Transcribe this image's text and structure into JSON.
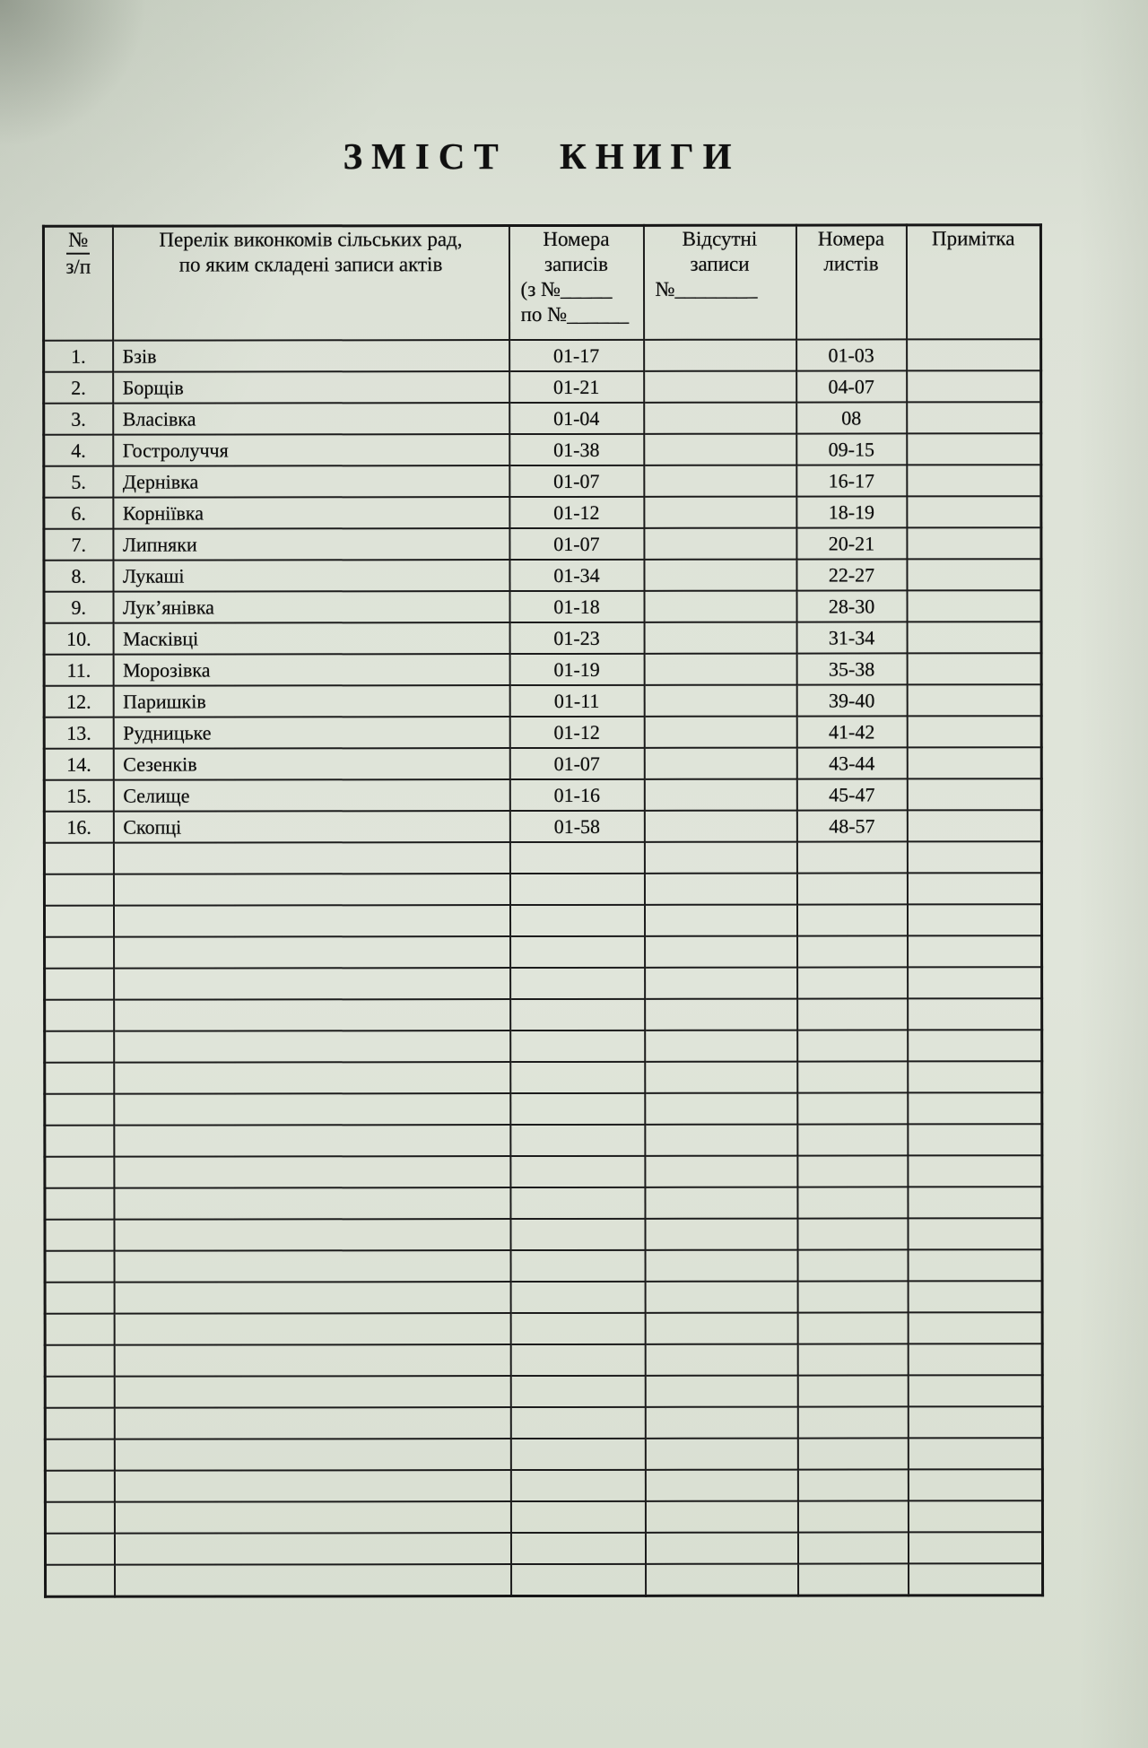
{
  "page": {
    "title": "ЗМІСТ КНИГИ"
  },
  "table": {
    "header": {
      "col1": [
        "№",
        "з/п"
      ],
      "col2": [
        "Перелік виконкомів сільських рад,",
        "по яким складені записи актів"
      ],
      "col3": [
        "Номера",
        "записів",
        "(з №_____",
        "по №______"
      ],
      "col4": [
        "Відсутні",
        "записи",
        "№________"
      ],
      "col5": [
        "Номера",
        "листів"
      ],
      "col6": [
        "Примітка"
      ]
    },
    "rows": [
      {
        "num": "1.",
        "name": "Бзів",
        "records": "01-17",
        "missing": "",
        "sheets": "01-03",
        "note": ""
      },
      {
        "num": "2.",
        "name": "Борщів",
        "records": "01-21",
        "missing": "",
        "sheets": "04-07",
        "note": ""
      },
      {
        "num": "3.",
        "name": "Власівка",
        "records": "01-04",
        "missing": "",
        "sheets": "08",
        "note": ""
      },
      {
        "num": "4.",
        "name": "Гостролуччя",
        "records": "01-38",
        "missing": "",
        "sheets": "09-15",
        "note": ""
      },
      {
        "num": "5.",
        "name": "Дернівка",
        "records": "01-07",
        "missing": "",
        "sheets": "16-17",
        "note": ""
      },
      {
        "num": "6.",
        "name": "Корніївка",
        "records": "01-12",
        "missing": "",
        "sheets": "18-19",
        "note": ""
      },
      {
        "num": "7.",
        "name": "Липняки",
        "records": "01-07",
        "missing": "",
        "sheets": "20-21",
        "note": ""
      },
      {
        "num": "8.",
        "name": "Лукаші",
        "records": "01-34",
        "missing": "",
        "sheets": "22-27",
        "note": ""
      },
      {
        "num": "9.",
        "name": "Лук’янівка",
        "records": "01-18",
        "missing": "",
        "sheets": "28-30",
        "note": ""
      },
      {
        "num": "10.",
        "name": "Масківці",
        "records": "01-23",
        "missing": "",
        "sheets": "31-34",
        "note": ""
      },
      {
        "num": "11.",
        "name": "Морозівка",
        "records": "01-19",
        "missing": "",
        "sheets": "35-38",
        "note": ""
      },
      {
        "num": "12.",
        "name": "Паришків",
        "records": "01-11",
        "missing": "",
        "sheets": "39-40",
        "note": ""
      },
      {
        "num": "13.",
        "name": "Рудницьке",
        "records": "01-12",
        "missing": "",
        "sheets": "41-42",
        "note": ""
      },
      {
        "num": "14.",
        "name": "Сезенків",
        "records": "01-07",
        "missing": "",
        "sheets": "43-44",
        "note": ""
      },
      {
        "num": "15.",
        "name": "Селище",
        "records": "01-16",
        "missing": "",
        "sheets": "45-47",
        "note": ""
      },
      {
        "num": "16.",
        "name": "Скопці",
        "records": "01-58",
        "missing": "",
        "sheets": "48-57",
        "note": ""
      }
    ],
    "empty_row_count": 24
  }
}
